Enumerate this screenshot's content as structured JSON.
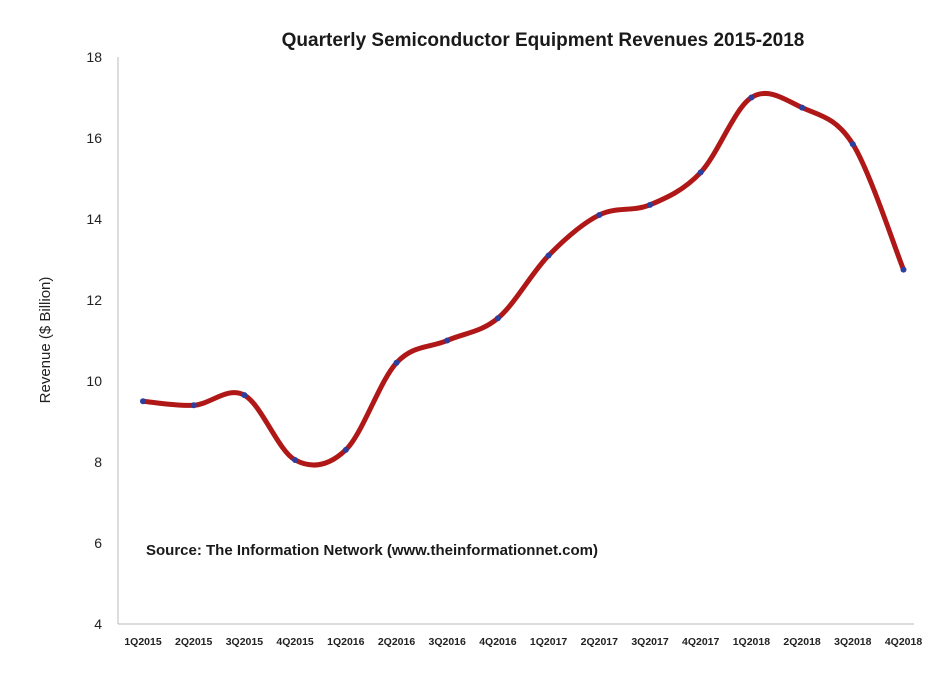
{
  "chart_data": {
    "type": "line",
    "title": "Quarterly Semiconductor Equipment Revenues 2015-2018",
    "ylabel": "Revenue ($ Billion)",
    "xlabel": "",
    "annotation": "Source: The Information Network (www.theinformationnet.com)",
    "categories": [
      "1Q2015",
      "2Q2015",
      "3Q2015",
      "4Q2015",
      "1Q2016",
      "2Q2016",
      "3Q2016",
      "4Q2016",
      "1Q2017",
      "2Q2017",
      "3Q2017",
      "4Q2017",
      "1Q2018",
      "2Q2018",
      "3Q2018",
      "4Q2018"
    ],
    "series": [
      {
        "values": [
          9.5,
          9.4,
          9.65,
          8.05,
          8.3,
          10.45,
          11.0,
          11.55,
          13.1,
          14.1,
          14.35,
          15.15,
          17.0,
          16.75,
          15.85,
          12.75
        ]
      }
    ],
    "ylim": [
      4,
      18
    ],
    "yticks": [
      4,
      6,
      8,
      10,
      12,
      14,
      16,
      18
    ],
    "grid": false,
    "legend": "none",
    "smooth": true,
    "colors": {
      "line": "#b01818",
      "marker": "#2c3e9e"
    }
  }
}
